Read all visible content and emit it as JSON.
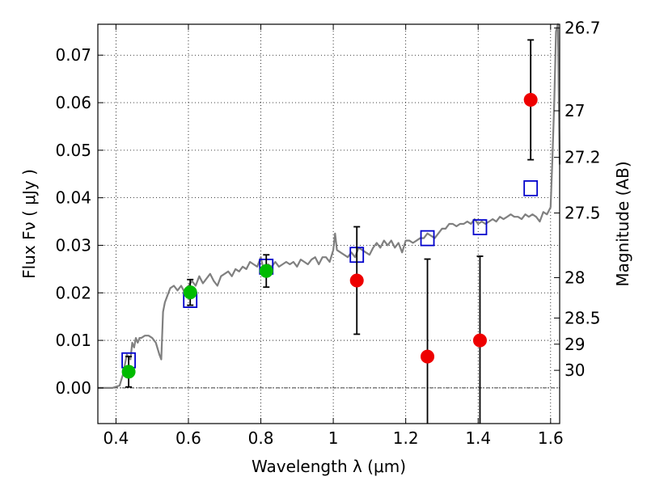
{
  "chart_data": {
    "type": "scatter",
    "xlabel": "Wavelength  λ (μm)",
    "ylabel": "Flux  Fν  ( μJy )",
    "ylabel_right": "Magnitude (AB)",
    "xlim": [
      0.35,
      1.625
    ],
    "ylim": [
      -0.0075,
      0.0765
    ],
    "grid": true,
    "x_ticks": [
      0.4,
      0.6,
      0.8,
      1.0,
      1.2,
      1.4,
      1.6
    ],
    "x_tick_labels": [
      "0.4",
      "0.6",
      "0.8",
      "1",
      "1.2",
      "1.4",
      "1.6"
    ],
    "y_ticks": [
      0.0,
      0.01,
      0.02,
      0.03,
      0.04,
      0.05,
      0.06,
      0.07
    ],
    "y_tick_labels": [
      "0.00",
      "0.01",
      "0.02",
      "0.03",
      "0.04",
      "0.05",
      "0.06",
      "0.07"
    ],
    "right_ticks": [
      {
        "label": "26.7",
        "flux": 0.0757
      },
      {
        "label": "27",
        "flux": 0.0583
      },
      {
        "label": "27.2",
        "flux": 0.0485
      },
      {
        "label": "27.5",
        "flux": 0.0368
      },
      {
        "label": "28",
        "flux": 0.0232
      },
      {
        "label": "28.5",
        "flux": 0.0147
      },
      {
        "label": "29",
        "flux": 0.0092
      },
      {
        "label": "30",
        "flux": 0.0037
      }
    ],
    "series": [
      {
        "kind": "line",
        "color": "#808080",
        "x": [
          0.35,
          0.375,
          0.39,
          0.41,
          0.42,
          0.43,
          0.44,
          0.445,
          0.45,
          0.455,
          0.46,
          0.465,
          0.47,
          0.48,
          0.49,
          0.5,
          0.51,
          0.52,
          0.525,
          0.53,
          0.535,
          0.54,
          0.545,
          0.55,
          0.56,
          0.57,
          0.58,
          0.59,
          0.6,
          0.61,
          0.62,
          0.63,
          0.64,
          0.65,
          0.66,
          0.67,
          0.68,
          0.69,
          0.7,
          0.71,
          0.72,
          0.73,
          0.74,
          0.75,
          0.76,
          0.77,
          0.78,
          0.79,
          0.8,
          0.81,
          0.82,
          0.83,
          0.84,
          0.85,
          0.86,
          0.87,
          0.88,
          0.89,
          0.9,
          0.91,
          0.92,
          0.93,
          0.94,
          0.95,
          0.96,
          0.97,
          0.98,
          0.99,
          1.0,
          1.005,
          1.01,
          1.02,
          1.03,
          1.04,
          1.05,
          1.06,
          1.07,
          1.08,
          1.09,
          1.1,
          1.11,
          1.12,
          1.13,
          1.14,
          1.15,
          1.16,
          1.17,
          1.18,
          1.19,
          1.2,
          1.21,
          1.22,
          1.23,
          1.24,
          1.25,
          1.26,
          1.27,
          1.28,
          1.29,
          1.3,
          1.31,
          1.32,
          1.33,
          1.34,
          1.35,
          1.36,
          1.37,
          1.38,
          1.39,
          1.4,
          1.41,
          1.42,
          1.43,
          1.44,
          1.45,
          1.46,
          1.47,
          1.48,
          1.49,
          1.5,
          1.51,
          1.52,
          1.53,
          1.54,
          1.55,
          1.56,
          1.57,
          1.58,
          1.59,
          1.6,
          1.605,
          1.61,
          1.615,
          1.62,
          1.625
        ],
        "y": [
          0.0,
          0.0,
          0.0,
          0.0005,
          0.003,
          0.007,
          0.006,
          0.0095,
          0.0085,
          0.0105,
          0.0095,
          0.0105,
          0.0105,
          0.011,
          0.011,
          0.0105,
          0.0095,
          0.007,
          0.006,
          0.016,
          0.018,
          0.019,
          0.02,
          0.021,
          0.0215,
          0.0205,
          0.0215,
          0.02,
          0.0215,
          0.0225,
          0.0215,
          0.0235,
          0.022,
          0.023,
          0.024,
          0.0225,
          0.0215,
          0.0235,
          0.024,
          0.0245,
          0.0235,
          0.025,
          0.0245,
          0.0255,
          0.025,
          0.0265,
          0.026,
          0.0255,
          0.0275,
          0.024,
          0.026,
          0.0255,
          0.0265,
          0.0255,
          0.026,
          0.0265,
          0.026,
          0.0265,
          0.0255,
          0.027,
          0.0265,
          0.026,
          0.027,
          0.0275,
          0.026,
          0.0275,
          0.0275,
          0.0265,
          0.029,
          0.0325,
          0.029,
          0.0285,
          0.028,
          0.0275,
          0.0285,
          0.0275,
          0.0295,
          0.029,
          0.0285,
          0.028,
          0.0295,
          0.0305,
          0.0295,
          0.031,
          0.03,
          0.031,
          0.0295,
          0.0305,
          0.0285,
          0.031,
          0.031,
          0.0305,
          0.031,
          0.0315,
          0.0315,
          0.0325,
          0.032,
          0.0315,
          0.0325,
          0.0335,
          0.0335,
          0.0345,
          0.0345,
          0.034,
          0.0345,
          0.0345,
          0.035,
          0.0345,
          0.0355,
          0.0345,
          0.035,
          0.0345,
          0.035,
          0.0355,
          0.035,
          0.036,
          0.0355,
          0.036,
          0.0365,
          0.036,
          0.036,
          0.0355,
          0.0365,
          0.036,
          0.0365,
          0.036,
          0.035,
          0.037,
          0.0365,
          0.038,
          0.048,
          0.06,
          0.075,
          0.0765,
          0.047
        ]
      },
      {
        "kind": "square",
        "color": "#0000cc",
        "x": [
          0.435,
          0.605,
          0.815,
          1.065,
          1.26,
          1.405,
          1.545
        ],
        "y": [
          0.0058,
          0.0185,
          0.0255,
          0.028,
          0.0315,
          0.0338,
          0.042
        ]
      },
      {
        "kind": "circle-errorbar",
        "color": "#00bb00",
        "x": [
          0.435,
          0.605,
          0.815
        ],
        "y": [
          0.0034,
          0.0201,
          0.0246
        ],
        "yerr": [
          0.0032,
          0.0027,
          0.0034
        ]
      },
      {
        "kind": "circle-errorbar",
        "color": "#ee0000",
        "x": [
          1.065,
          1.26,
          1.405,
          1.545
        ],
        "y": [
          0.0226,
          0.0066,
          0.01,
          0.0606
        ],
        "yerr": [
          0.0113,
          0.0205,
          0.0177,
          0.0126
        ]
      }
    ]
  }
}
